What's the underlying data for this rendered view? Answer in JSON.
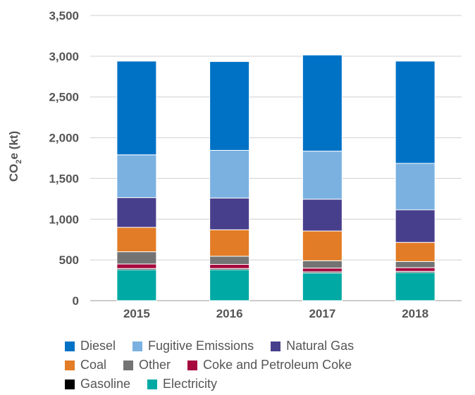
{
  "chart_data": {
    "type": "bar",
    "stacked": true,
    "title": "",
    "ylabel_main": "CO",
    "ylabel_sub": "2",
    "ylabel_tail": "e (kt)",
    "ylim": [
      0,
      3500
    ],
    "yticks": [
      "0",
      "500",
      "1,000",
      "1,500",
      "2,000",
      "2,500",
      "3,000",
      "3,500"
    ],
    "ytick_values": [
      0,
      500,
      1000,
      1500,
      2000,
      2500,
      3000,
      3500
    ],
    "grid": true,
    "legend_position": "bottom",
    "categories": [
      "2015",
      "2016",
      "2017",
      "2018"
    ],
    "series": [
      {
        "name": "Electricity",
        "color": "#00a9a4",
        "values": [
          380,
          380,
          340,
          345
        ]
      },
      {
        "name": "Gasoline",
        "color": "#000000",
        "values": [
          15,
          15,
          15,
          15
        ]
      },
      {
        "name": "Coke and Petroleum Coke",
        "color": "#a6093d",
        "values": [
          55,
          50,
          45,
          45
        ]
      },
      {
        "name": "Other",
        "color": "#737373",
        "values": [
          150,
          100,
          90,
          75
        ]
      },
      {
        "name": "Coal",
        "color": "#e37c26",
        "values": [
          300,
          325,
          365,
          235
        ]
      },
      {
        "name": "Natural Gas",
        "color": "#483f8c",
        "values": [
          365,
          390,
          390,
          400
        ]
      },
      {
        "name": "Fugitive Emissions",
        "color": "#7ab1e1",
        "values": [
          525,
          585,
          590,
          570
        ]
      },
      {
        "name": "Diesel",
        "color": "#0072c6",
        "values": [
          1150,
          1090,
          1180,
          1255
        ]
      }
    ]
  },
  "legend": {
    "rows": [
      [
        "Diesel",
        "Fugitive Emissions",
        "Natural Gas"
      ],
      [
        "Coal",
        "Other",
        "Coke and Petroleum Coke"
      ],
      [
        "Gasoline",
        "Electricity"
      ]
    ]
  }
}
